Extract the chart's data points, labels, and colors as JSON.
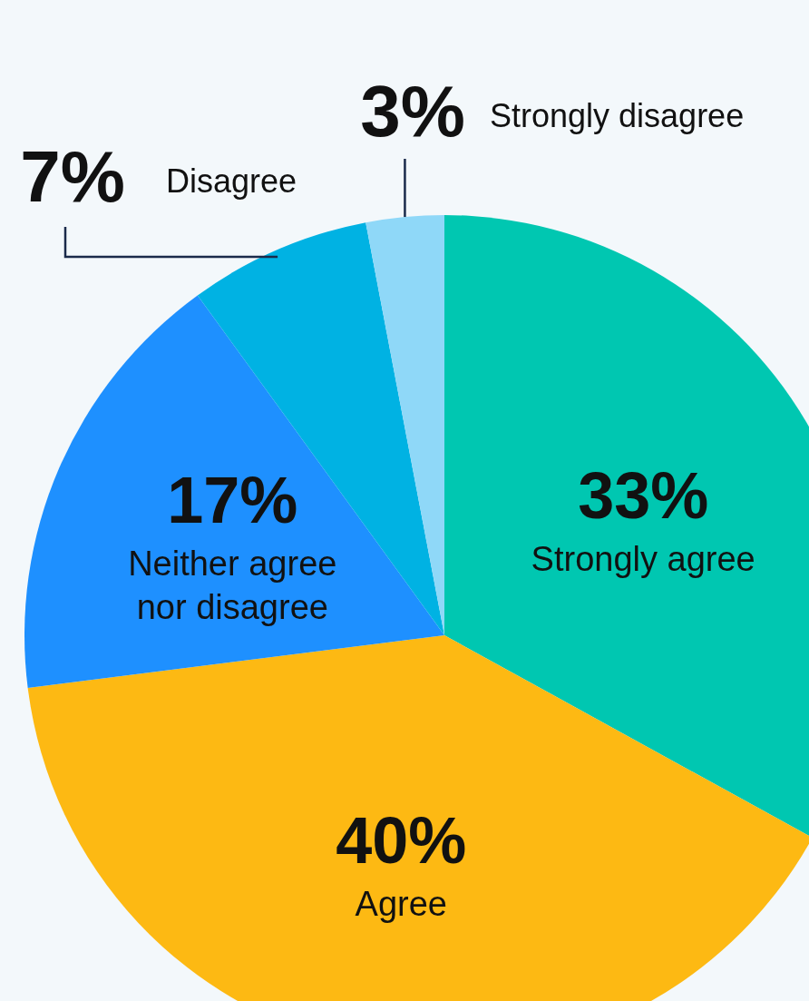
{
  "chart_data": {
    "type": "pie",
    "categories": [
      "Strongly agree",
      "Agree",
      "Neither agree nor disagree",
      "Disagree",
      "Strongly disagree"
    ],
    "values": [
      33,
      40,
      17,
      7,
      3
    ],
    "colors": [
      "#00c7b1",
      "#fdb913",
      "#1e90ff",
      "#00b2e3",
      "#8fd8f8"
    ],
    "value_labels": [
      "33%",
      "40%",
      "17%",
      "7%",
      "3%"
    ]
  }
}
